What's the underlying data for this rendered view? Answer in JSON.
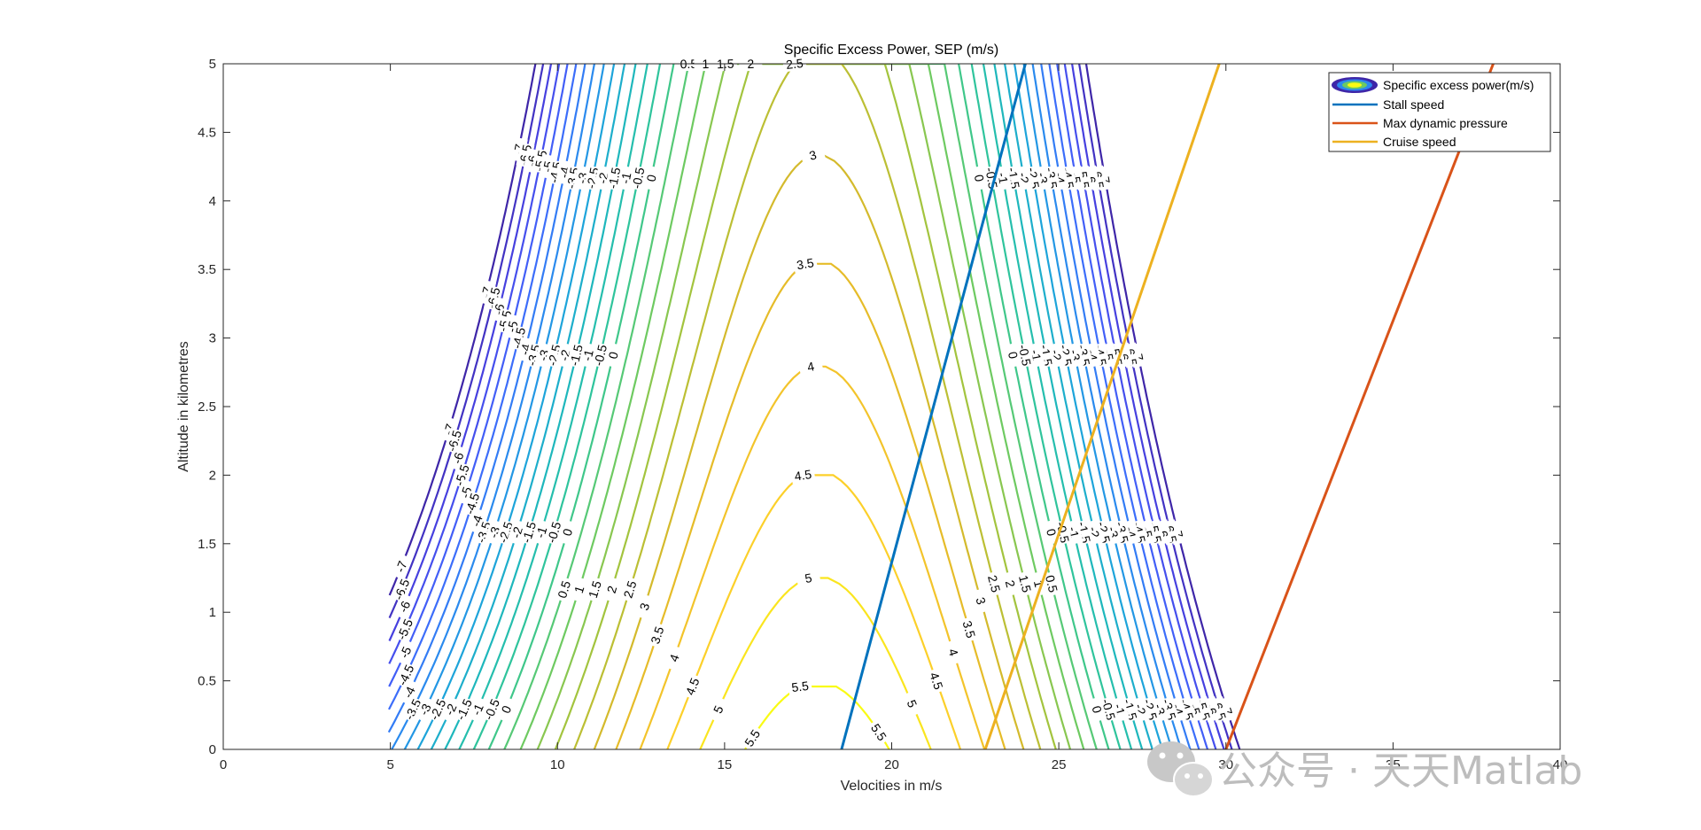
{
  "chart_data": {
    "type": "contour",
    "title": "Specific Excess Power, SEP (m/s)",
    "xlabel": "Velocities in m/s",
    "ylabel": "Altitude in kilometres",
    "xlim": [
      0,
      40
    ],
    "ylim": [
      0,
      5
    ],
    "x_ticks": [
      "0",
      "5",
      "10",
      "15",
      "20",
      "25",
      "30",
      "35",
      "40"
    ],
    "y_ticks": [
      "0",
      "0.5",
      "1",
      "1.5",
      "2",
      "2.5",
      "3",
      "3.5",
      "4",
      "4.5",
      "5"
    ],
    "grid": false,
    "legend_position": "top-right",
    "contour_range": {
      "velocity_m_s": [
        5,
        33
      ],
      "altitude_km": [
        0,
        5
      ]
    },
    "peak_velocity_m_s": 17.8,
    "contour_levels": [
      -7,
      -6.5,
      -6,
      -5.5,
      -5,
      -4.5,
      -4,
      -3.5,
      -3,
      -2.5,
      -2,
      -1.5,
      -1,
      -0.5,
      0,
      0.5,
      1,
      1.5,
      2,
      2.5,
      3,
      3.5,
      4,
      4.5,
      5,
      5.5
    ],
    "contour_level_labels": [
      "-7",
      "-6.5",
      "-6",
      "-5.5",
      "-5",
      "-4.5",
      "-4",
      "-3.5",
      "-3",
      "-2.5",
      "-2",
      "-1.5",
      "-1",
      "-0.5",
      "0",
      "0.5",
      "1",
      "1.5",
      "2",
      "2.5",
      "3",
      "3.5",
      "4",
      "4.5",
      "5",
      "5.5"
    ],
    "colormap": [
      "#3e26a8",
      "#4744e6",
      "#4066fd",
      "#2b88f0",
      "#1ca5d9",
      "#1ebbb7",
      "#36c792",
      "#6cca63",
      "#a8c43b",
      "#dfb728",
      "#fcca2d",
      "#f9fb14"
    ],
    "series": [
      {
        "name": "Specific excess power(m/s)",
        "kind": "contour"
      },
      {
        "name": "Stall speed",
        "kind": "line",
        "color": "#0072bd",
        "x": [
          18.5,
          24.0
        ],
        "y": [
          0,
          5
        ]
      },
      {
        "name": "Max dynamic pressure",
        "kind": "line",
        "color": "#d95319",
        "x": [
          30.0,
          38.0
        ],
        "y": [
          0,
          5
        ]
      },
      {
        "name": "Cruise speed",
        "kind": "line",
        "color": "#edb120",
        "x": [
          22.8,
          29.8
        ],
        "y": [
          0,
          5
        ]
      }
    ]
  },
  "watermark": {
    "text": "公众号 · 天天Matlab",
    "icon": "wechat-icon"
  }
}
